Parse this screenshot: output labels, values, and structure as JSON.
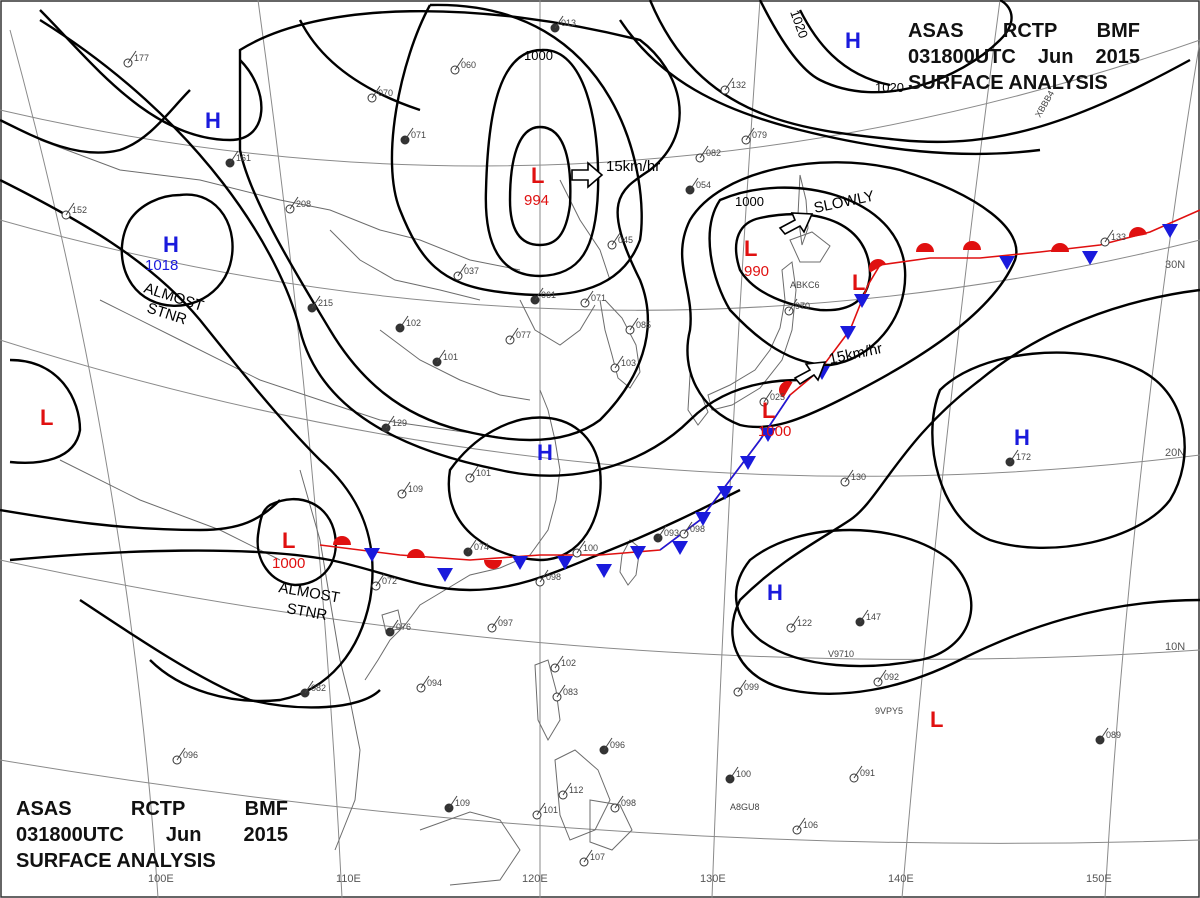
{
  "header": {
    "line1": [
      "ASAS",
      "RCTP",
      "BMF"
    ],
    "line2": [
      "031800UTC",
      "Jun",
      "2015"
    ],
    "line3": "SURFACE ANALYSIS"
  },
  "grid_labels": {
    "lon": [
      "100E",
      "110E",
      "120E",
      "130E",
      "140E",
      "150E"
    ],
    "lat": [
      "30N",
      "20N",
      "10N"
    ]
  },
  "isobar_labels": [
    "1000",
    "1020",
    "1020",
    "1000"
  ],
  "centers": [
    {
      "type": "H",
      "value": "1018"
    },
    {
      "type": "H",
      "value": ""
    },
    {
      "type": "H",
      "value": ""
    },
    {
      "type": "H",
      "value": ""
    },
    {
      "type": "H",
      "value": ""
    },
    {
      "type": "H",
      "value": ""
    },
    {
      "type": "L",
      "value": "994"
    },
    {
      "type": "L",
      "value": "990"
    },
    {
      "type": "L",
      "value": "1000"
    },
    {
      "type": "L",
      "value": "1000"
    },
    {
      "type": "L",
      "value": ""
    },
    {
      "type": "L",
      "value": ""
    },
    {
      "type": "L",
      "value": ""
    }
  ],
  "motion_labels": [
    "15km/hr",
    "SLOWLY",
    "15km/hr"
  ],
  "status_labels": [
    {
      "lines": [
        "ALMOST",
        "STNR"
      ]
    },
    {
      "lines": [
        "ALMOST",
        "STNR"
      ]
    }
  ],
  "stations": [
    {
      "p": "013"
    },
    {
      "p": "060"
    },
    {
      "p": "070"
    },
    {
      "p": "071"
    },
    {
      "p": "082"
    },
    {
      "p": "079"
    },
    {
      "p": "054"
    },
    {
      "p": "045"
    },
    {
      "p": "037"
    },
    {
      "p": "061"
    },
    {
      "p": "071"
    },
    {
      "p": "077"
    },
    {
      "p": "101"
    },
    {
      "p": "085"
    },
    {
      "p": "103"
    },
    {
      "p": "129"
    },
    {
      "p": "101"
    },
    {
      "p": "109"
    },
    {
      "p": "074"
    },
    {
      "p": "100"
    },
    {
      "p": "098"
    },
    {
      "p": "093"
    },
    {
      "p": "098"
    },
    {
      "p": "072"
    },
    {
      "p": "076"
    },
    {
      "p": "097"
    },
    {
      "p": "094"
    },
    {
      "p": "082"
    },
    {
      "p": "102"
    },
    {
      "p": "083"
    },
    {
      "p": "096"
    },
    {
      "p": "112"
    },
    {
      "p": "098"
    },
    {
      "p": "109"
    },
    {
      "p": "101"
    },
    {
      "p": "107"
    },
    {
      "p": "100"
    },
    {
      "p": "099"
    },
    {
      "p": "122"
    },
    {
      "p": "147"
    },
    {
      "p": "092"
    },
    {
      "p": "130"
    },
    {
      "p": "172"
    },
    {
      "p": "133"
    },
    {
      "p": "091"
    },
    {
      "p": "089"
    },
    {
      "p": "106"
    },
    {
      "p": "208"
    },
    {
      "p": "215"
    },
    {
      "p": "152"
    },
    {
      "p": "177"
    },
    {
      "p": "161"
    },
    {
      "p": "096"
    },
    {
      "p": "132"
    },
    {
      "p": "102"
    },
    {
      "p": "025"
    },
    {
      "p": "970"
    }
  ],
  "ship_ids": [
    "ABKC6",
    "XBBB4",
    "V9710",
    "9VPY5",
    "A8GU8"
  ],
  "colors": {
    "isobar": "#000000",
    "high": "#1a1adc",
    "low": "#e01010",
    "warm_front": "#e01010",
    "cold_front": "#1a1adc",
    "grid": "#888888",
    "coast": "#666666"
  }
}
